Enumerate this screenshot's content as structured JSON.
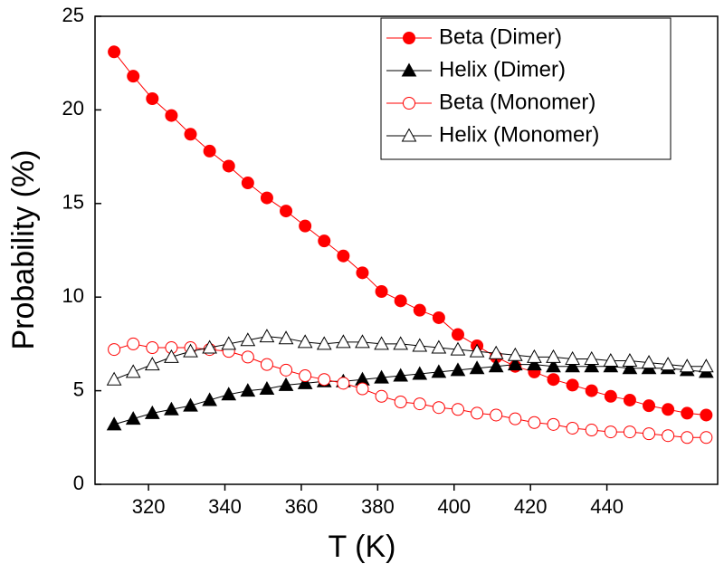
{
  "chart_data": {
    "type": "line",
    "x_label": "T (K)",
    "y_label": "Probability (%)",
    "x": [
      311,
      316,
      321,
      326,
      331,
      336,
      341,
      346,
      351,
      356,
      361,
      366,
      371,
      376,
      381,
      386,
      391,
      396,
      401,
      406,
      411,
      416,
      421,
      426,
      431,
      436,
      441,
      446,
      451,
      456,
      461,
      466
    ],
    "series": [
      {
        "name": "Beta (Dimer)",
        "color": "#ff0000",
        "marker": "circle",
        "filled": true,
        "values": [
          23.1,
          21.8,
          20.6,
          19.7,
          18.7,
          17.8,
          17.0,
          16.1,
          15.3,
          14.6,
          13.8,
          13.0,
          12.2,
          11.3,
          10.3,
          9.8,
          9.3,
          8.9,
          8.0,
          7.4,
          6.8,
          6.3,
          6.0,
          5.6,
          5.3,
          5.0,
          4.7,
          4.5,
          4.2,
          4.0,
          3.8,
          3.7
        ]
      },
      {
        "name": "Helix (Dimer)",
        "color": "#000000",
        "marker": "triangle",
        "filled": true,
        "values": [
          3.2,
          3.5,
          3.8,
          4.0,
          4.2,
          4.5,
          4.8,
          5.0,
          5.1,
          5.3,
          5.4,
          5.5,
          5.5,
          5.6,
          5.7,
          5.8,
          5.9,
          6.0,
          6.1,
          6.2,
          6.3,
          6.4,
          6.4,
          6.3,
          6.3,
          6.3,
          6.3,
          6.2,
          6.2,
          6.2,
          6.1,
          6.0
        ]
      },
      {
        "name": "Beta (Monomer)",
        "color": "#ff0000",
        "marker": "circle",
        "filled": false,
        "values": [
          7.2,
          7.5,
          7.3,
          7.3,
          7.3,
          7.2,
          7.1,
          6.8,
          6.4,
          6.1,
          5.8,
          5.6,
          5.4,
          5.1,
          4.7,
          4.4,
          4.3,
          4.1,
          4.0,
          3.8,
          3.7,
          3.5,
          3.3,
          3.2,
          3.0,
          2.9,
          2.8,
          2.8,
          2.7,
          2.6,
          2.5,
          2.5
        ]
      },
      {
        "name": "Helix (Monomer)",
        "color": "#000000",
        "marker": "triangle",
        "filled": false,
        "values": [
          5.6,
          6.0,
          6.4,
          6.8,
          7.1,
          7.3,
          7.5,
          7.7,
          7.9,
          7.8,
          7.6,
          7.5,
          7.6,
          7.6,
          7.5,
          7.5,
          7.4,
          7.3,
          7.2,
          7.1,
          7.0,
          6.9,
          6.8,
          6.8,
          6.7,
          6.7,
          6.6,
          6.6,
          6.5,
          6.4,
          6.3,
          6.3
        ]
      }
    ],
    "xlim": [
      306,
      469
    ],
    "xticks": [
      320,
      340,
      360,
      380,
      400,
      420,
      440
    ],
    "ylim": [
      0,
      25
    ],
    "yticks": [
      0,
      5,
      10,
      15,
      20,
      25
    ],
    "legend": "top-right"
  }
}
